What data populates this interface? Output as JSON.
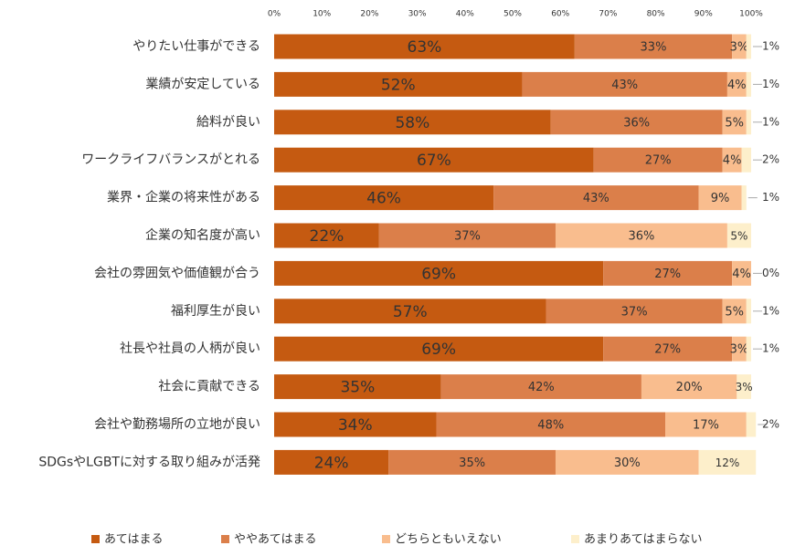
{
  "chart_data": {
    "type": "stacked-bar-horizontal",
    "categories": [
      "やりたい仕事ができる",
      "業績が安定している",
      "給料が良い",
      "ワークライフバランスがとれる",
      "業界・企業の将来性がある",
      "企業の知名度が高い",
      "会社の雰囲気や価値観が合う",
      "福利厚生が良い",
      "社長や社員の人柄が良い",
      "社会に貢献できる",
      "会社や勤務場所の立地が良い",
      "SDGsやLGBTに対する取り組みが活発"
    ],
    "series": [
      {
        "name": "あてはまる",
        "color": "#c55a11",
        "values": [
          63,
          52,
          58,
          67,
          46,
          22,
          69,
          57,
          69,
          35,
          34,
          24
        ],
        "value_labels": [
          "63%",
          "52%",
          "58%",
          "67%",
          "46%",
          "22%",
          "69%",
          "57%",
          "69%",
          "35%",
          "34%",
          "24%"
        ]
      },
      {
        "name": "ややあてはまる",
        "color": "#db7f4a",
        "values": [
          33,
          43,
          36,
          27,
          43,
          37,
          27,
          37,
          27,
          42,
          48,
          35
        ],
        "value_labels": [
          "33%",
          "43%",
          "36%",
          "27%",
          "43%",
          "37%",
          "27%",
          "37%",
          "27%",
          "42%",
          "48%",
          "35%"
        ]
      },
      {
        "name": "どちらともいえない",
        "color": "#f9bd8e",
        "values": [
          3,
          4,
          5,
          4,
          9,
          36,
          4,
          5,
          3,
          20,
          17,
          30
        ],
        "value_labels": [
          "3%",
          "4%",
          "5%",
          "4%",
          "9%",
          "36%",
          "4%",
          "5%",
          "3%",
          "20%",
          "17%",
          "30%"
        ]
      },
      {
        "name": "あまりあてはまらない",
        "color": "#fdefcb",
        "values": [
          1,
          1,
          1,
          2,
          1,
          5,
          0,
          1,
          1,
          3,
          2,
          12
        ],
        "value_labels": [
          "1%",
          "1%",
          "1%",
          "2%",
          "1%",
          "5%",
          "0%",
          "1%",
          "1%",
          "3%",
          "2%",
          "12%"
        ]
      }
    ],
    "xlim": [
      0,
      100
    ],
    "xticks": [
      {
        "value": 0,
        "label": "0%"
      },
      {
        "value": 10,
        "label": "10%"
      },
      {
        "value": 20,
        "label": "20%"
      },
      {
        "value": 30,
        "label": "30%"
      },
      {
        "value": 40,
        "label": "40%"
      },
      {
        "value": 50,
        "label": "50%"
      },
      {
        "value": 60,
        "label": "60%"
      },
      {
        "value": 70,
        "label": "70%"
      },
      {
        "value": 80,
        "label": "80%"
      },
      {
        "value": 90,
        "label": "90%"
      },
      {
        "value": 100,
        "label": "100%"
      }
    ],
    "legend": "bottom"
  }
}
